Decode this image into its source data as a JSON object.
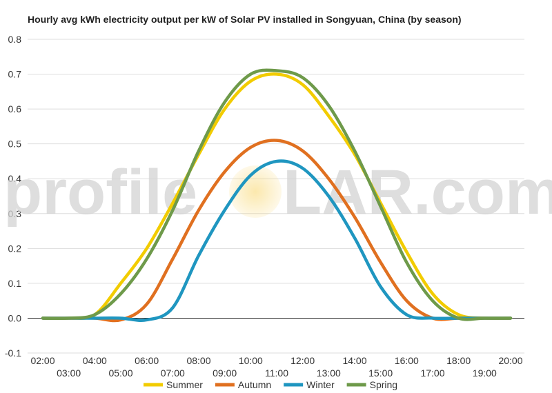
{
  "chart_data": {
    "type": "line",
    "title": "Hourly avg kWh electricity output per kW of Solar PV installed in Songyuan, China (by season)",
    "xlabel": "",
    "ylabel": "",
    "x_ticks_upper": [
      "02:00",
      "04:00",
      "06:00",
      "08:00",
      "10:00",
      "12:00",
      "14:00",
      "16:00",
      "18:00",
      "20:00"
    ],
    "x_ticks_lower": [
      "03:00",
      "05:00",
      "07:00",
      "09:00",
      "11:00",
      "13:00",
      "15:00",
      "17:00",
      "19:00"
    ],
    "y_ticks": [
      "-0.1",
      "0.0",
      "0.1",
      "0.2",
      "0.3",
      "0.4",
      "0.5",
      "0.6",
      "0.7",
      "0.8"
    ],
    "ylim": [
      -0.1,
      0.8
    ],
    "xlim": [
      "02:00",
      "20:00"
    ],
    "grid": "horizontal",
    "legend_position": "bottom",
    "series": [
      {
        "name": "Summer",
        "color": "#F2CC00",
        "x": [
          "02:00",
          "03:00",
          "04:00",
          "05:00",
          "06:00",
          "07:00",
          "08:00",
          "09:00",
          "10:00",
          "11:00",
          "12:00",
          "13:00",
          "14:00",
          "15:00",
          "16:00",
          "17:00",
          "18:00",
          "19:00",
          "20:00"
        ],
        "values": [
          0.0,
          0.0,
          0.01,
          0.1,
          0.2,
          0.33,
          0.47,
          0.6,
          0.68,
          0.7,
          0.67,
          0.58,
          0.47,
          0.33,
          0.19,
          0.07,
          0.01,
          0.0,
          0.0
        ]
      },
      {
        "name": "Autumn",
        "color": "#E07020",
        "x": [
          "02:00",
          "03:00",
          "04:00",
          "05:00",
          "06:00",
          "07:00",
          "08:00",
          "09:00",
          "10:00",
          "11:00",
          "12:00",
          "13:00",
          "14:00",
          "15:00",
          "16:00",
          "17:00",
          "18:00",
          "19:00",
          "20:00"
        ],
        "values": [
          0.0,
          0.0,
          0.0,
          -0.005,
          0.04,
          0.17,
          0.31,
          0.42,
          0.49,
          0.51,
          0.48,
          0.4,
          0.29,
          0.16,
          0.05,
          0.0,
          0.0,
          0.0,
          0.0
        ]
      },
      {
        "name": "Winter",
        "color": "#1F96C0",
        "x": [
          "02:00",
          "03:00",
          "04:00",
          "05:00",
          "06:00",
          "07:00",
          "08:00",
          "09:00",
          "10:00",
          "11:00",
          "12:00",
          "13:00",
          "14:00",
          "15:00",
          "16:00",
          "17:00",
          "18:00",
          "19:00",
          "20:00"
        ],
        "values": [
          0.0,
          0.0,
          0.0,
          0.0,
          -0.005,
          0.03,
          0.18,
          0.31,
          0.41,
          0.45,
          0.43,
          0.35,
          0.23,
          0.09,
          0.01,
          0.0,
          0.0,
          0.0,
          0.0
        ]
      },
      {
        "name": "Spring",
        "color": "#6E9A4A",
        "x": [
          "02:00",
          "03:00",
          "04:00",
          "05:00",
          "06:00",
          "07:00",
          "08:00",
          "09:00",
          "10:00",
          "11:00",
          "12:00",
          "13:00",
          "14:00",
          "15:00",
          "16:00",
          "17:00",
          "18:00",
          "19:00",
          "20:00"
        ],
        "values": [
          0.0,
          0.0,
          0.01,
          0.07,
          0.17,
          0.31,
          0.48,
          0.62,
          0.7,
          0.71,
          0.69,
          0.61,
          0.48,
          0.32,
          0.16,
          0.05,
          0.0,
          0.0,
          0.0
        ]
      }
    ]
  },
  "watermark": {
    "text_before": "profile",
    "text_after": "LAR.com",
    "sun_color": "#F5C242"
  }
}
